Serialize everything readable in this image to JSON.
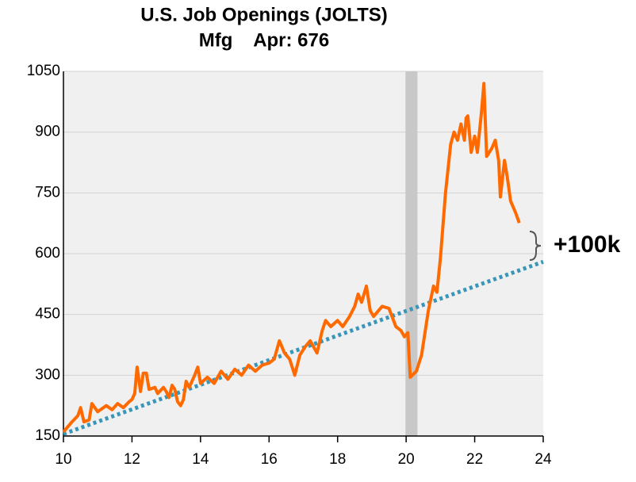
{
  "chart_data": {
    "type": "line",
    "title": "U.S. Job Openings (JOLTS)",
    "subtitle": "Mfg    Apr: 676",
    "annotation": "+100k",
    "annotation_color": "#c00000",
    "xlim": [
      10,
      24
    ],
    "xticks": [
      10,
      12,
      14,
      16,
      18,
      20,
      22,
      24
    ],
    "ylim": [
      150,
      1050
    ],
    "yticks": [
      150,
      300,
      450,
      600,
      750,
      900,
      1050
    ],
    "grid": true,
    "shade": [
      19.98,
      20.33
    ],
    "shade_color": "#c8c8c8",
    "series": [
      {
        "color": "#ff6a00",
        "style": "solid",
        "x": [
          10.0,
          10.25,
          10.42,
          10.5,
          10.6,
          10.75,
          10.83,
          11.0,
          11.25,
          11.42,
          11.58,
          11.75,
          11.92,
          12.0,
          12.08,
          12.15,
          12.25,
          12.33,
          12.42,
          12.5,
          12.67,
          12.75,
          12.92,
          13.0,
          13.08,
          13.17,
          13.25,
          13.33,
          13.42,
          13.5,
          13.58,
          13.67,
          13.83,
          13.92,
          14.0,
          14.2,
          14.4,
          14.6,
          14.8,
          15.0,
          15.2,
          15.4,
          15.6,
          15.8,
          16.0,
          16.15,
          16.3,
          16.45,
          16.6,
          16.75,
          16.9,
          17.05,
          17.2,
          17.4,
          17.55,
          17.65,
          17.8,
          18.0,
          18.15,
          18.35,
          18.5,
          18.6,
          18.7,
          18.84,
          18.95,
          19.05,
          19.3,
          19.5,
          19.7,
          19.85,
          19.95,
          20.05,
          20.12,
          20.3,
          20.45,
          20.65,
          20.8,
          20.9,
          21.0,
          21.15,
          21.3,
          21.4,
          21.5,
          21.6,
          21.7,
          21.75,
          21.8,
          21.9,
          22.0,
          22.08,
          22.2,
          22.27,
          22.35,
          22.5,
          22.6,
          22.7,
          22.75,
          22.87,
          22.95,
          23.05,
          23.2,
          23.3
        ],
        "values": [
          160,
          185,
          200,
          220,
          185,
          190,
          230,
          210,
          225,
          215,
          230,
          220,
          235,
          240,
          255,
          320,
          260,
          305,
          305,
          265,
          270,
          255,
          270,
          260,
          245,
          275,
          265,
          235,
          225,
          240,
          285,
          270,
          300,
          320,
          280,
          295,
          280,
          310,
          290,
          315,
          300,
          325,
          310,
          325,
          330,
          340,
          385,
          355,
          340,
          300,
          350,
          370,
          385,
          355,
          410,
          435,
          420,
          435,
          420,
          445,
          470,
          500,
          480,
          520,
          460,
          445,
          470,
          465,
          420,
          410,
          395,
          405,
          295,
          310,
          350,
          460,
          520,
          505,
          590,
          750,
          870,
          900,
          880,
          920,
          880,
          935,
          940,
          850,
          890,
          850,
          950,
          1020,
          840,
          860,
          880,
          830,
          740,
          830,
          790,
          730,
          700,
          676
        ]
      },
      {
        "color": "#3a96b8",
        "style": "dotted",
        "x": [
          10,
          24
        ],
        "values": [
          155,
          580
        ]
      }
    ]
  }
}
